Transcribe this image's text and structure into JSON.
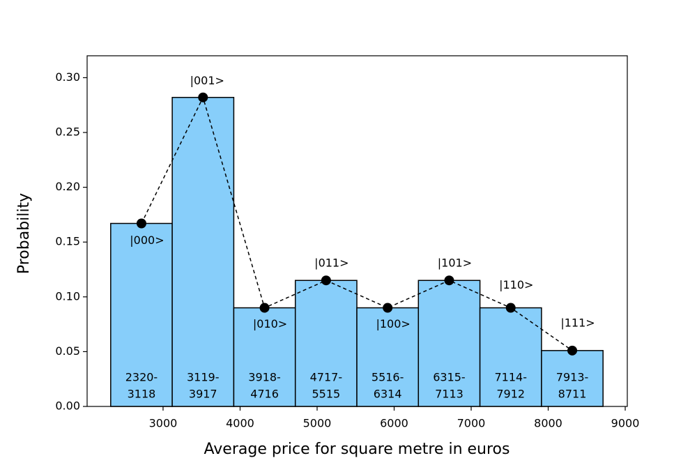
{
  "chart_data": {
    "type": "histogram",
    "xlabel": "Average price for square metre in euros",
    "ylabel": "Probability",
    "bins": [
      2320,
      3119,
      3918,
      4717,
      5516,
      6315,
      7114,
      7913,
      8712
    ],
    "counts": [
      0.167,
      0.282,
      0.09,
      0.115,
      0.09,
      0.115,
      0.09,
      0.051
    ],
    "color": "#87cefa",
    "bin_labels": [
      [
        "2320-",
        "3118"
      ],
      [
        "3119-",
        "3917"
      ],
      [
        "3918-",
        "4716"
      ],
      [
        "4717-",
        "5515"
      ],
      [
        "5516-",
        "6314"
      ],
      [
        "6315-",
        "7113"
      ],
      [
        "7114-",
        "7912"
      ],
      [
        "7913-",
        "8711"
      ]
    ],
    "series": [
      {
        "color": "#000000",
        "x": [
          2719.5,
          3518.5,
          4317.5,
          5116.5,
          5915.5,
          6714.5,
          7513.5,
          8312.5
        ],
        "values": [
          0.167,
          0.282,
          0.09,
          0.115,
          0.09,
          0.115,
          0.09,
          0.051
        ],
        "point_labels": [
          "|000>",
          "|001>",
          "|010>",
          "|011>",
          "|100>",
          "|101>",
          "|110>",
          "|111>"
        ]
      }
    ],
    "xlim": [
      2014,
      9027
    ],
    "ylim": [
      0,
      0.32
    ],
    "xticks": [
      3000,
      4000,
      5000,
      6000,
      7000,
      8000,
      9000
    ],
    "yticks": [
      {
        "value": 0,
        "label": "0.00"
      },
      {
        "value": 0.05,
        "label": "0.05"
      },
      {
        "value": 0.1,
        "label": "0.10"
      },
      {
        "value": 0.15,
        "label": "0.15"
      },
      {
        "value": 0.2,
        "label": "0.20"
      },
      {
        "value": 0.25,
        "label": "0.25"
      },
      {
        "value": 0.3,
        "label": "0.30"
      }
    ]
  }
}
